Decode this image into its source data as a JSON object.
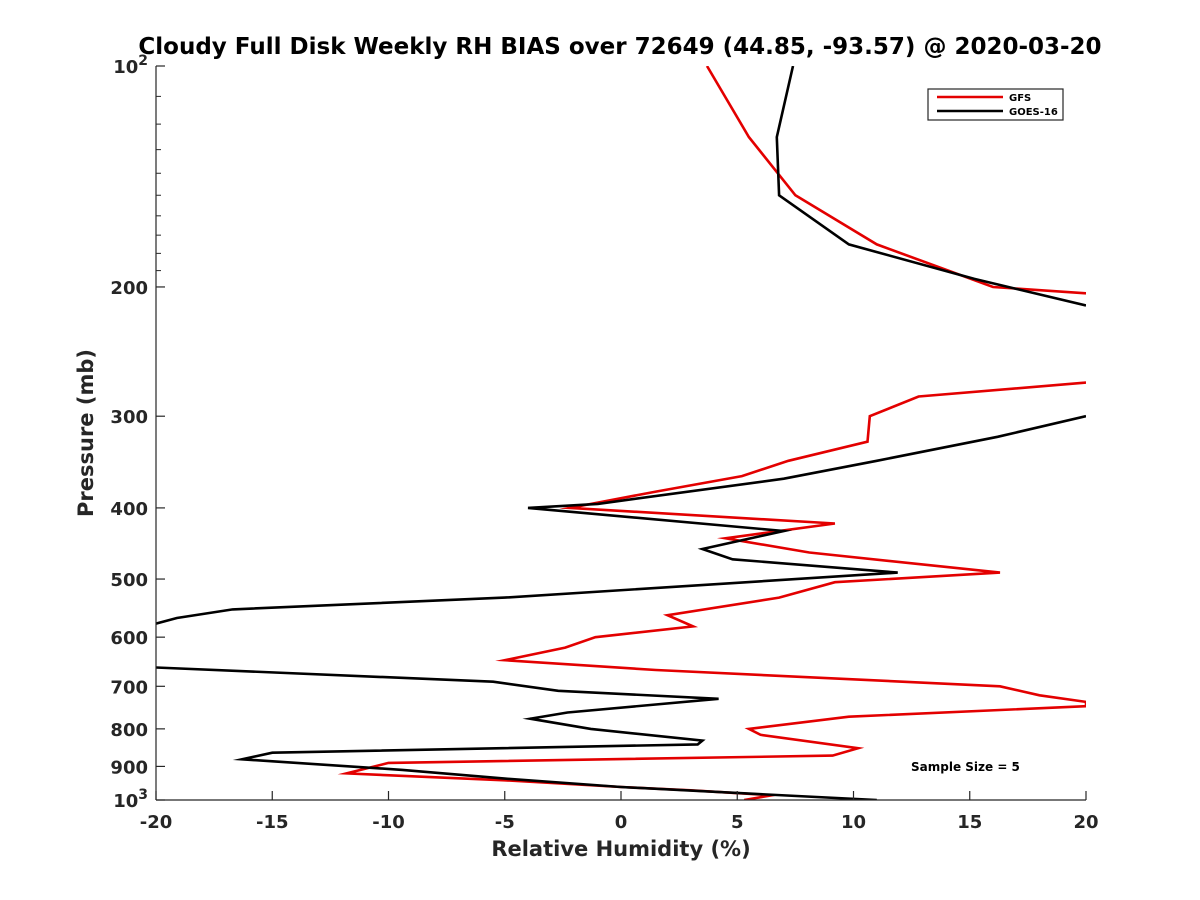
{
  "chart_data": {
    "type": "line",
    "title": "Cloudy Full Disk Weekly RH BIAS over 72649 (44.85, -93.57) @ 2020-03-20",
    "xlabel": "Relative Humidity (%)",
    "ylabel": "Pressure (mb)",
    "xlim": [
      -20,
      20
    ],
    "ylim": [
      100,
      1000
    ],
    "y_scale": "log",
    "y_reversed": true,
    "x_ticks": [
      "-20",
      "-15",
      "-10",
      "-5",
      "0",
      "5",
      "10",
      "15",
      "20"
    ],
    "y_ticks": [
      {
        "value": 100,
        "base": "10",
        "exp": "2"
      },
      {
        "value": 200,
        "label": "200"
      },
      {
        "value": 300,
        "label": "300"
      },
      {
        "value": 400,
        "label": "400"
      },
      {
        "value": 500,
        "label": "500"
      },
      {
        "value": 600,
        "label": "600"
      },
      {
        "value": 700,
        "label": "700"
      },
      {
        "value": 800,
        "label": "800"
      },
      {
        "value": 900,
        "label": "900"
      },
      {
        "value": 1000,
        "base": "10",
        "exp": "3"
      }
    ],
    "legend_position": "top-right",
    "annotation": "Sample Size = 5",
    "series": [
      {
        "name": "GFS",
        "color": "#e30000",
        "segments": [
          [
            [
              3.7,
              100
            ],
            [
              5.5,
              125
            ],
            [
              7.5,
              150
            ],
            [
              11.0,
              175
            ],
            [
              16.0,
              200
            ],
            [
              20.0,
              204
            ]
          ],
          [
            [
              20.0,
              270
            ],
            [
              12.8,
              282
            ],
            [
              10.7,
              300
            ],
            [
              10.6,
              325
            ],
            [
              7.2,
              345
            ],
            [
              5.2,
              362
            ],
            [
              1.5,
              380
            ],
            [
              -2.2,
              400
            ],
            [
              9.2,
              420
            ],
            [
              4.5,
              440
            ],
            [
              8.1,
              460
            ],
            [
              16.3,
              490
            ],
            [
              9.2,
              505
            ],
            [
              6.8,
              530
            ],
            [
              2.0,
              560
            ],
            [
              3.1,
              580
            ],
            [
              -1.1,
              600
            ],
            [
              -2.4,
              620
            ],
            [
              -5.0,
              645
            ],
            [
              1.5,
              665
            ],
            [
              16.3,
              700
            ],
            [
              18.0,
              720
            ],
            [
              20.0,
              735
            ],
            [
              20.0,
              745
            ],
            [
              9.8,
              770
            ],
            [
              5.5,
              800
            ],
            [
              6.0,
              815
            ],
            [
              10.2,
              850
            ],
            [
              9.1,
              870
            ],
            [
              -10.0,
              890
            ],
            [
              -11.8,
              920
            ],
            [
              -5.0,
              940
            ],
            [
              0.0,
              960
            ],
            [
              3.0,
              970
            ],
            [
              6.5,
              985
            ],
            [
              5.3,
              1000
            ]
          ]
        ]
      },
      {
        "name": "GOES-16",
        "color": "#000000",
        "segments": [
          [
            [
              7.4,
              100
            ],
            [
              6.7,
              125
            ],
            [
              6.8,
              150
            ],
            [
              9.8,
              175
            ],
            [
              15.2,
              195
            ],
            [
              20.0,
              212
            ]
          ],
          [
            [
              20.0,
              300
            ],
            [
              16.2,
              320
            ],
            [
              11.0,
              345
            ],
            [
              7.0,
              365
            ],
            [
              -1.0,
              395
            ],
            [
              -4.0,
              400
            ],
            [
              7.0,
              430
            ],
            [
              3.5,
              455
            ],
            [
              4.8,
              470
            ],
            [
              11.9,
              490
            ],
            [
              -5.0,
              530
            ],
            [
              -16.7,
              550
            ],
            [
              -19.1,
              565
            ],
            [
              -20.0,
              575
            ]
          ],
          [
            [
              -20.0,
              660
            ],
            [
              -5.5,
              690
            ],
            [
              -2.7,
              710
            ],
            [
              4.2,
              728
            ],
            [
              -2.3,
              760
            ],
            [
              -3.9,
              775
            ],
            [
              -1.3,
              800
            ],
            [
              3.5,
              830
            ],
            [
              3.3,
              840
            ],
            [
              -15.0,
              862
            ],
            [
              -16.3,
              880
            ],
            [
              -9.4,
              910
            ],
            [
              -5.0,
              935
            ],
            [
              0.0,
              960
            ],
            [
              5.5,
              980
            ],
            [
              11.0,
              1000
            ]
          ]
        ]
      }
    ]
  }
}
